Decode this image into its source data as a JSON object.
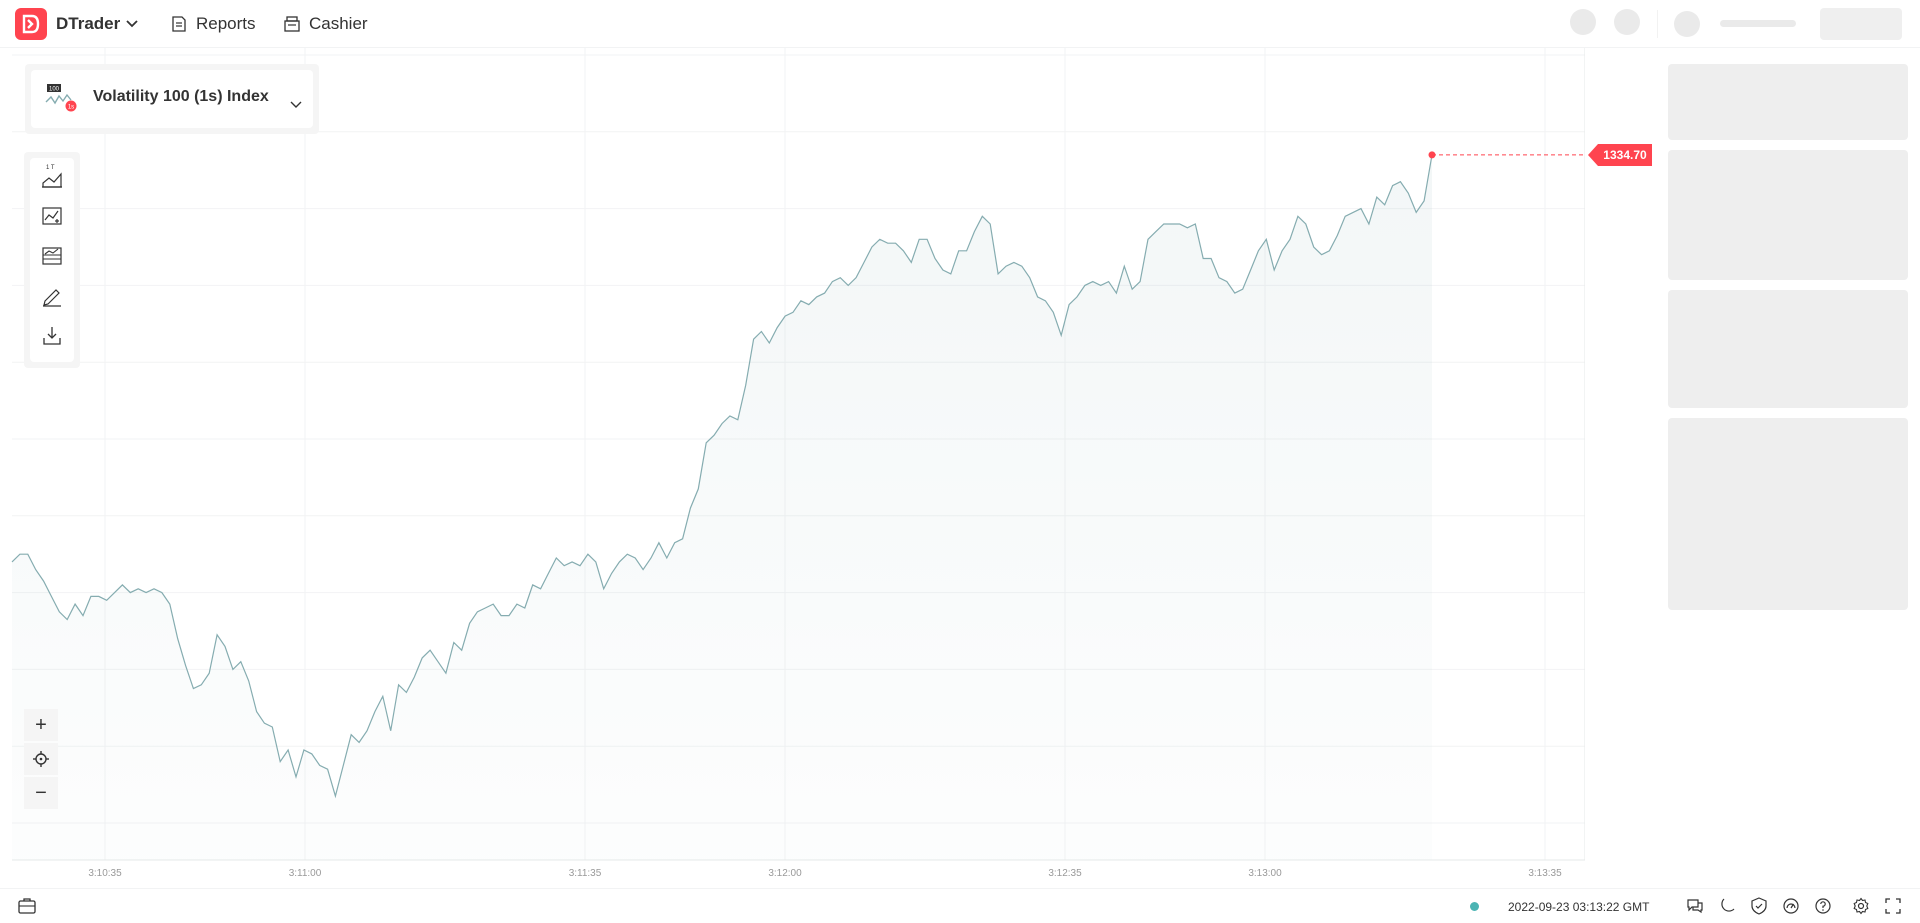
{
  "header": {
    "app_name": "DTrader",
    "nav": [
      {
        "label": "Reports",
        "icon": "reports-icon"
      },
      {
        "label": "Cashier",
        "icon": "cashier-icon"
      }
    ]
  },
  "symbol": {
    "name": "Volatility 100 (1s) Index",
    "icon_badge": "100",
    "icon": "volatility-index-icon"
  },
  "toolbar": {
    "items": [
      {
        "name": "chart-type-button",
        "icon": "area-chart-icon",
        "badge": "1 T"
      },
      {
        "name": "indicators-button",
        "icon": "indicators-icon"
      },
      {
        "name": "chart-templates-button",
        "icon": "templates-icon"
      },
      {
        "name": "drawing-tools-button",
        "icon": "pencil-icon"
      },
      {
        "name": "download-button",
        "icon": "download-icon"
      }
    ]
  },
  "zoom": {
    "in": "+",
    "reset": "⌖",
    "out": "−"
  },
  "current_price": "1334.70",
  "colors": {
    "brand": "#ff444f",
    "line": "#85acb0",
    "status_online": "#4bb4b3"
  },
  "chart_data": {
    "type": "area",
    "ylim": [
      1325.6,
      1336.2
    ],
    "y_ticks": [
      "1336.00",
      "1335.00",
      "1334.00",
      "1333.00",
      "1332.00",
      "1331.00",
      "1330.00",
      "1329.00",
      "1328.00",
      "1327.00",
      "1326.00"
    ],
    "x_ticks": [
      "3:10:35",
      "3:11:00",
      "3:11:35",
      "3:12:00",
      "3:12:35",
      "3:13:00",
      "3:13:35"
    ],
    "last_value": 1334.7,
    "values": [
      1329.4,
      1329.5,
      1329.5,
      1329.3,
      1329.15,
      1328.95,
      1328.75,
      1328.65,
      1328.85,
      1328.7,
      1328.95,
      1328.95,
      1328.9,
      1329.0,
      1329.1,
      1329.0,
      1329.05,
      1329.0,
      1329.05,
      1329.0,
      1328.85,
      1328.4,
      1328.05,
      1327.75,
      1327.8,
      1327.95,
      1328.45,
      1328.3,
      1328.0,
      1328.1,
      1327.85,
      1327.45,
      1327.3,
      1327.25,
      1326.8,
      1326.95,
      1326.6,
      1326.95,
      1326.9,
      1326.75,
      1326.7,
      1326.35,
      1326.75,
      1327.15,
      1327.05,
      1327.2,
      1327.45,
      1327.65,
      1327.2,
      1327.8,
      1327.7,
      1327.9,
      1328.15,
      1328.25,
      1328.1,
      1327.95,
      1328.35,
      1328.25,
      1328.6,
      1328.75,
      1328.8,
      1328.85,
      1328.7,
      1328.7,
      1328.85,
      1328.8,
      1329.1,
      1329.05,
      1329.25,
      1329.45,
      1329.35,
      1329.4,
      1329.35,
      1329.5,
      1329.4,
      1329.05,
      1329.25,
      1329.4,
      1329.5,
      1329.45,
      1329.3,
      1329.45,
      1329.65,
      1329.45,
      1329.65,
      1329.7,
      1330.1,
      1330.35,
      1330.95,
      1331.05,
      1331.2,
      1331.3,
      1331.25,
      1331.7,
      1332.3,
      1332.4,
      1332.25,
      1332.45,
      1332.6,
      1332.65,
      1332.8,
      1332.75,
      1332.85,
      1332.9,
      1333.05,
      1333.1,
      1333.0,
      1333.1,
      1333.3,
      1333.5,
      1333.6,
      1333.55,
      1333.55,
      1333.45,
      1333.3,
      1333.6,
      1333.6,
      1333.35,
      1333.2,
      1333.15,
      1333.45,
      1333.45,
      1333.7,
      1333.9,
      1333.8,
      1333.15,
      1333.25,
      1333.3,
      1333.25,
      1333.1,
      1332.85,
      1332.8,
      1332.65,
      1332.35,
      1332.75,
      1332.85,
      1333.0,
      1333.05,
      1333.0,
      1333.05,
      1332.9,
      1333.25,
      1332.95,
      1333.05,
      1333.6,
      1333.7,
      1333.8,
      1333.8,
      1333.8,
      1333.75,
      1333.8,
      1333.35,
      1333.35,
      1333.1,
      1333.05,
      1332.9,
      1332.95,
      1333.2,
      1333.45,
      1333.6,
      1333.2,
      1333.45,
      1333.6,
      1333.9,
      1333.8,
      1333.5,
      1333.4,
      1333.45,
      1333.65,
      1333.9,
      1333.95,
      1334.0,
      1333.8,
      1334.15,
      1334.05,
      1334.3,
      1334.35,
      1334.2,
      1333.95,
      1334.1,
      1334.7
    ]
  },
  "footer": {
    "server_time": "2022-09-23 03:13:22 GMT"
  }
}
